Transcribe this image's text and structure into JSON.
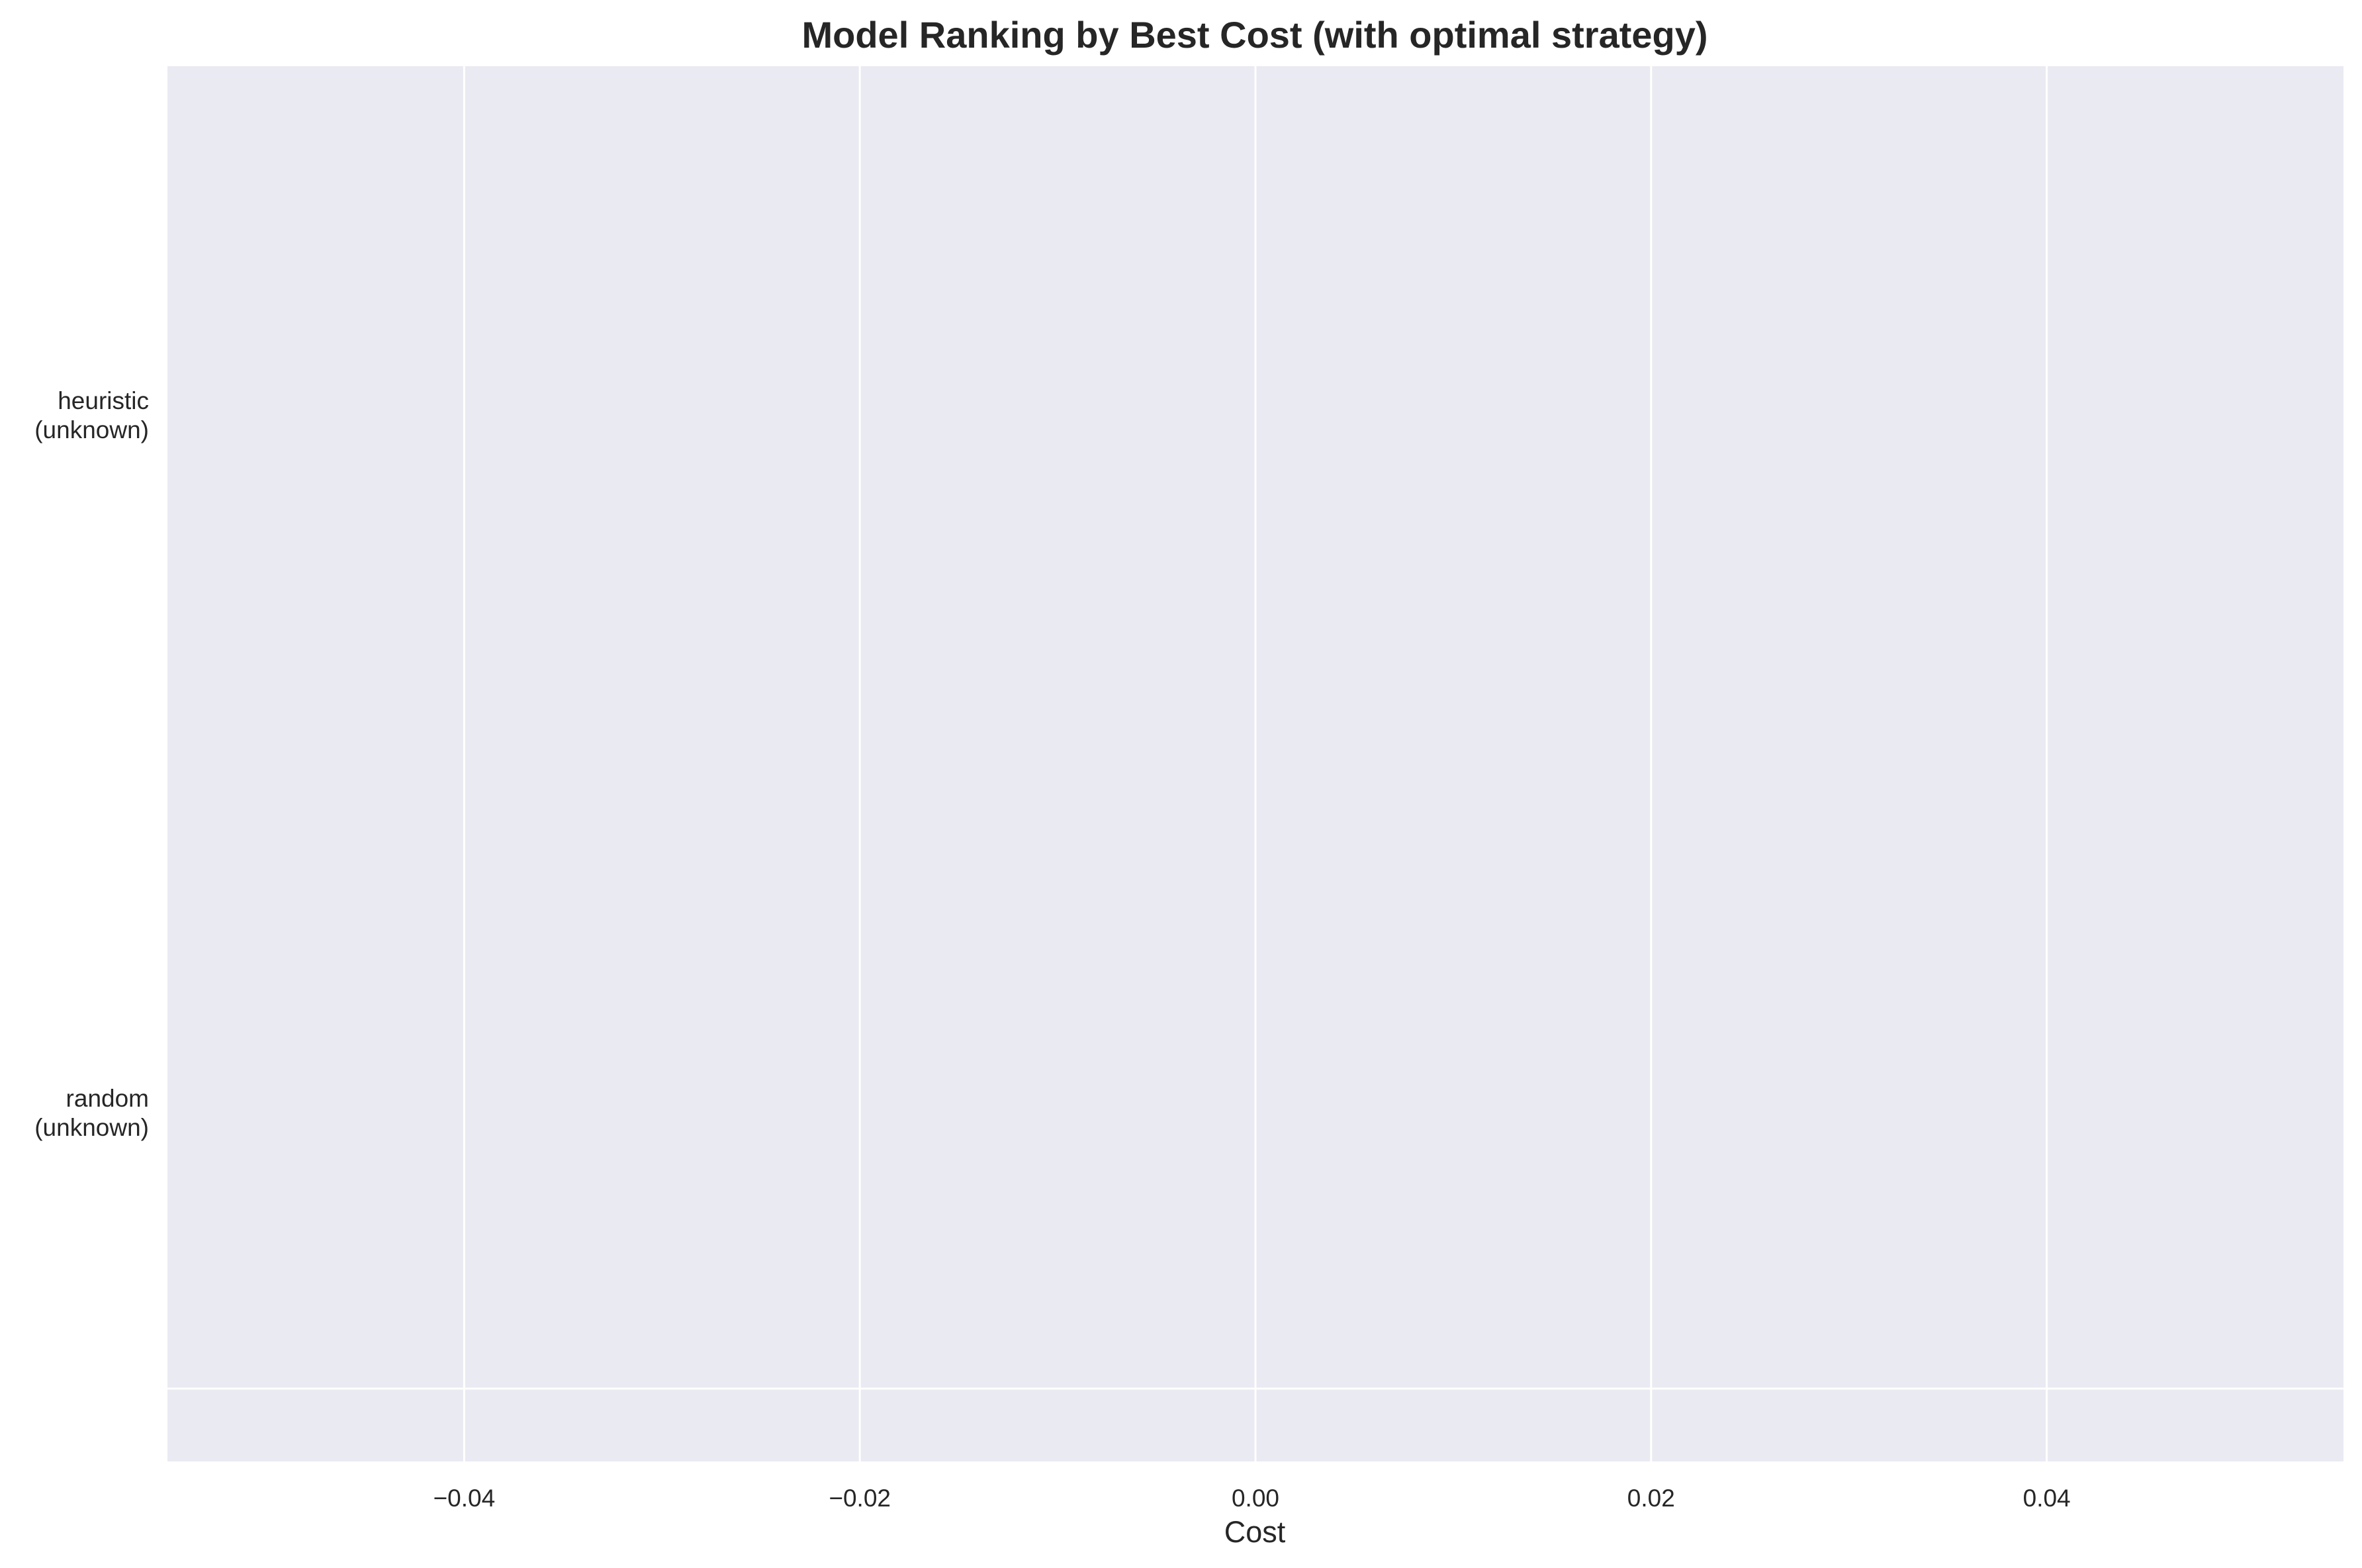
{
  "chart_data": {
    "type": "bar",
    "orientation": "horizontal",
    "title": "Model Ranking by Best Cost (with optimal strategy)",
    "xlabel": "Cost",
    "ylabel": "",
    "categories": [
      [
        "heuristic",
        "(unknown)"
      ],
      [
        "random",
        "(unknown)"
      ]
    ],
    "values": [
      0,
      0
    ],
    "xlim": [
      -0.055,
      0.055
    ],
    "xticks": [
      -0.04,
      -0.02,
      0.0,
      0.02,
      0.04
    ],
    "xtick_labels": [
      "−0.04",
      "−0.02",
      "0.00",
      "0.02",
      "0.04"
    ],
    "grid": true,
    "grid_axis": "x",
    "colors": {
      "plot_background": "#EAEAF2",
      "grid": "#FFFFFF",
      "text": "#262626"
    }
  }
}
